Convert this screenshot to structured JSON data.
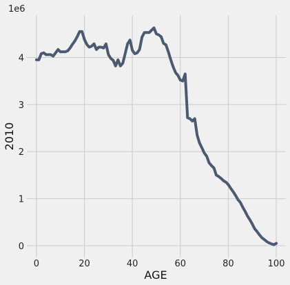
{
  "chart_data": {
    "type": "line",
    "xlabel": "AGE",
    "ylabel": "2010",
    "y_offset_label": "1e6",
    "xlim": [
      -4,
      104
    ],
    "ylim": [
      -0.25,
      4.9
    ],
    "x_ticks": [
      0,
      20,
      40,
      60,
      80,
      100
    ],
    "y_ticks": [
      0,
      1,
      2,
      3,
      4
    ],
    "grid": true,
    "line_color": "#4b5a70",
    "background": "#f0f0f0",
    "grid_color": "#cbcbcb",
    "series": [
      {
        "x": [
          0,
          1,
          2,
          3,
          4,
          5,
          6,
          7,
          8,
          9,
          10,
          11,
          12,
          13,
          14,
          15,
          16,
          17,
          18,
          19,
          20,
          21,
          22,
          23,
          24,
          25,
          26,
          27,
          28,
          29,
          30,
          31,
          32,
          33,
          34,
          35,
          36,
          37,
          38,
          39,
          40,
          41,
          42,
          43,
          44,
          45,
          46,
          47,
          48,
          49,
          50,
          51,
          52,
          53,
          54,
          55,
          56,
          57,
          58,
          59,
          60,
          61,
          62,
          63,
          64,
          65,
          66,
          67,
          68,
          69,
          70,
          71,
          72,
          73,
          74,
          75,
          76,
          77,
          78,
          79,
          80,
          81,
          82,
          83,
          84,
          85,
          86,
          87,
          88,
          89,
          90,
          91,
          92,
          93,
          94,
          95,
          96,
          97,
          98,
          99,
          100
        ],
        "y": [
          3.95,
          3.95,
          4.08,
          4.1,
          4.06,
          4.06,
          4.06,
          4.03,
          4.1,
          4.17,
          4.12,
          4.12,
          4.12,
          4.14,
          4.2,
          4.28,
          4.35,
          4.44,
          4.55,
          4.55,
          4.38,
          4.28,
          4.22,
          4.24,
          4.29,
          4.17,
          4.22,
          4.22,
          4.2,
          4.29,
          4.06,
          3.98,
          3.94,
          3.82,
          3.95,
          3.82,
          3.88,
          4.08,
          4.29,
          4.37,
          4.15,
          4.08,
          4.1,
          4.17,
          4.43,
          4.53,
          4.53,
          4.53,
          4.58,
          4.63,
          4.5,
          4.48,
          4.44,
          4.3,
          4.27,
          4.12,
          3.95,
          3.8,
          3.68,
          3.62,
          3.52,
          3.5,
          3.65,
          2.72,
          2.7,
          2.65,
          2.7,
          2.35,
          2.18,
          2.08,
          1.97,
          1.9,
          1.76,
          1.7,
          1.65,
          1.5,
          1.47,
          1.43,
          1.38,
          1.35,
          1.3,
          1.22,
          1.15,
          1.07,
          0.98,
          0.92,
          0.82,
          0.73,
          0.63,
          0.55,
          0.46,
          0.36,
          0.3,
          0.23,
          0.17,
          0.13,
          0.09,
          0.06,
          0.04,
          0.02,
          0.05
        ]
      }
    ]
  }
}
